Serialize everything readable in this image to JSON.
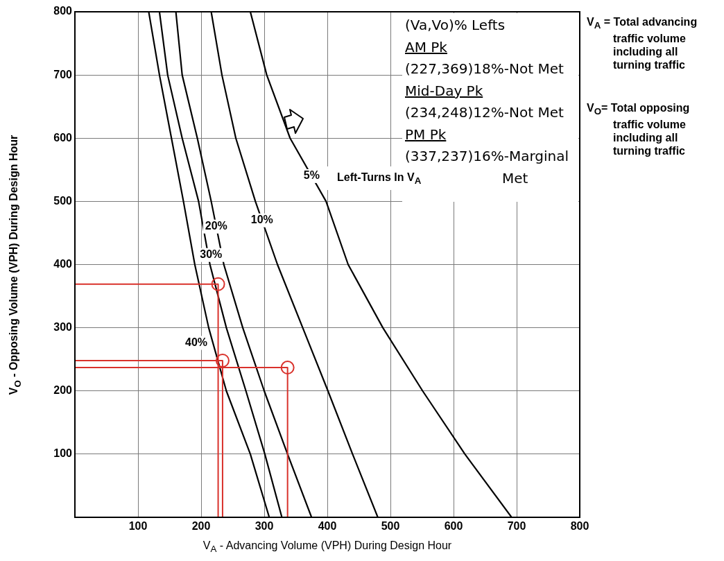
{
  "chart_data": {
    "type": "line",
    "xlabel": "V$_{A}$ - Advancing Volume (VPH) During Design Hour",
    "ylabel": "V$_{O}$ - Opposing Volume (VPH) During Design Hour",
    "xlim": [
      0,
      800
    ],
    "xticks": [
      100,
      200,
      300,
      400,
      500,
      600,
      700,
      800
    ],
    "ylim": [
      0,
      800
    ],
    "yticks": [
      100,
      200,
      300,
      400,
      500,
      600,
      700,
      800
    ],
    "grid": true,
    "legend": false,
    "series": [
      {
        "name": "40%",
        "color": "#000000",
        "x": [
          117,
          134,
          153,
          172,
          190,
          212,
          240,
          278,
          308
        ],
        "values": [
          800,
          700,
          600,
          500,
          400,
          300,
          200,
          100,
          0
        ]
      },
      {
        "name": "30%",
        "color": "#000000",
        "x": [
          134,
          147,
          170,
          196,
          214,
          240,
          271,
          301,
          328
        ],
        "values": [
          800,
          700,
          600,
          500,
          400,
          300,
          200,
          100,
          0
        ]
      },
      {
        "name": "20%",
        "color": "#000000",
        "x": [
          160,
          170,
          194,
          216,
          236,
          266,
          300,
          337,
          375
        ],
        "values": [
          800,
          700,
          600,
          500,
          400,
          300,
          200,
          100,
          0
        ]
      },
      {
        "name": "10%",
        "color": "#000000",
        "x": [
          216,
          233,
          255,
          286,
          321,
          361,
          401,
          440,
          480
        ],
        "values": [
          800,
          700,
          600,
          500,
          400,
          300,
          200,
          100,
          0
        ]
      },
      {
        "name": "5%",
        "color": "#000000",
        "x": [
          278,
          304,
          341,
          398,
          433,
          488,
          551,
          618,
          692
        ],
        "values": [
          800,
          700,
          600,
          500,
          400,
          300,
          200,
          100,
          0
        ]
      },
      {
        "color": "#d9312b",
        "x": [
          0,
          227,
          227
        ],
        "values": [
          369,
          369,
          0
        ]
      },
      {
        "color": "#d9312b",
        "x": [
          0,
          234,
          234
        ],
        "values": [
          248,
          248,
          0
        ]
      },
      {
        "color": "#d9312b",
        "x": [
          0,
          337,
          337
        ],
        "values": [
          237,
          237,
          0
        ]
      },
      {
        "type": "scatter",
        "marker": "circle",
        "color": "#d9312b",
        "x": [
          227,
          234,
          337
        ],
        "values": [
          369,
          248,
          237
        ]
      }
    ],
    "annotations": [
      "Left-Turns In V$_{A}$",
      "(Va,Vo)% Lefts",
      "AM Pk",
      "(227,369)18%-Not Met",
      "Mid-Day Pk",
      "(234,248)12%-Not Met",
      "PM Pk",
      "(337,237)16%-Marginal Met",
      "V$_{A}$ = Total advancing traffic volume including all turning traffic",
      "V$_{O}$= Total opposing traffic volume including all turning traffic"
    ]
  }
}
